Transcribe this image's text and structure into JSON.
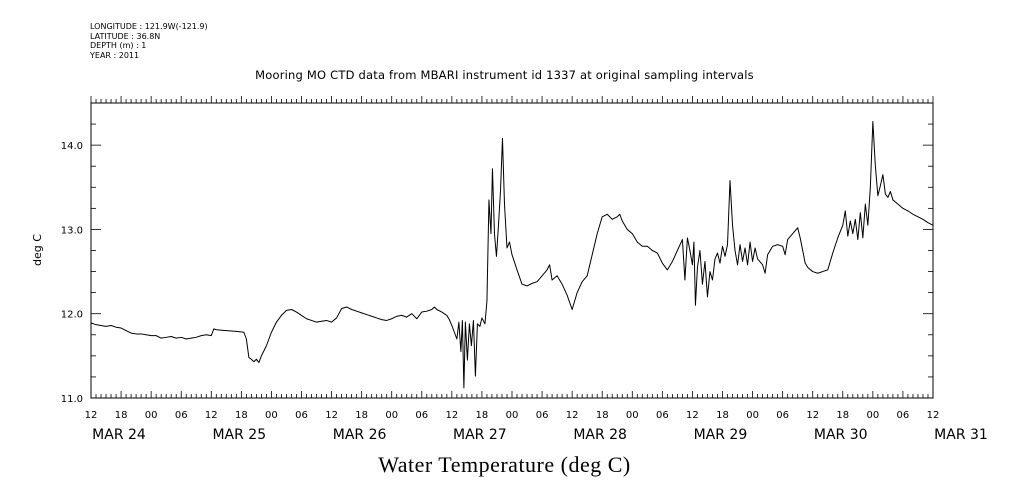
{
  "metadata": {
    "longitude": "LONGITUDE : 121.9W(-121.9)",
    "latitude": "LATITUDE : 36.8N",
    "depth": "DEPTH (m) : 1",
    "year": "YEAR : 2011"
  },
  "chart_data": {
    "type": "line",
    "title": "Mooring MO CTD data from MBARI instrument id 1337 at original sampling intervals",
    "xlabel": "Water Temperature (deg C)",
    "ylabel": "deg C",
    "ylim": [
      11.0,
      14.5
    ],
    "yticks": [
      11.0,
      12.0,
      13.0,
      14.0
    ],
    "ytick_labels": [
      "11.0",
      "12.0",
      "13.0",
      "14.0"
    ],
    "x_unit": "hours since 2011-03-24 12:00",
    "xlim": [
      0,
      168
    ],
    "hour_ticks": [
      {
        "t": 0,
        "label": "12"
      },
      {
        "t": 6,
        "label": "18"
      },
      {
        "t": 12,
        "label": "00"
      },
      {
        "t": 18,
        "label": "06"
      },
      {
        "t": 24,
        "label": "12"
      },
      {
        "t": 30,
        "label": "18"
      },
      {
        "t": 36,
        "label": "00"
      },
      {
        "t": 42,
        "label": "06"
      },
      {
        "t": 48,
        "label": "12"
      },
      {
        "t": 54,
        "label": "18"
      },
      {
        "t": 60,
        "label": "00"
      },
      {
        "t": 66,
        "label": "06"
      },
      {
        "t": 72,
        "label": "12"
      },
      {
        "t": 78,
        "label": "18"
      },
      {
        "t": 84,
        "label": "00"
      },
      {
        "t": 90,
        "label": "06"
      },
      {
        "t": 96,
        "label": "12"
      },
      {
        "t": 102,
        "label": "18"
      },
      {
        "t": 108,
        "label": "00"
      },
      {
        "t": 114,
        "label": "06"
      },
      {
        "t": 120,
        "label": "12"
      },
      {
        "t": 126,
        "label": "18"
      },
      {
        "t": 132,
        "label": "00"
      },
      {
        "t": 138,
        "label": "06"
      },
      {
        "t": 144,
        "label": "12"
      },
      {
        "t": 150,
        "label": "18"
      },
      {
        "t": 156,
        "label": "00"
      },
      {
        "t": 162,
        "label": "06"
      },
      {
        "t": 168,
        "label": "12"
      }
    ],
    "date_labels": [
      {
        "t": 0,
        "label": "MAR 24"
      },
      {
        "t": 24,
        "label": "MAR 25"
      },
      {
        "t": 48,
        "label": "MAR 26"
      },
      {
        "t": 72,
        "label": "MAR 27"
      },
      {
        "t": 96,
        "label": "MAR 28"
      },
      {
        "t": 120,
        "label": "MAR 29"
      },
      {
        "t": 144,
        "label": "MAR 30"
      },
      {
        "t": 168,
        "label": "MAR 31"
      }
    ],
    "series": [
      {
        "values": [
          [
            0,
            11.89
          ],
          [
            1,
            11.87
          ],
          [
            2,
            11.86
          ],
          [
            3,
            11.85
          ],
          [
            4,
            11.86
          ],
          [
            5,
            11.84
          ],
          [
            6,
            11.83
          ],
          [
            7,
            11.8
          ],
          [
            8,
            11.77
          ],
          [
            9,
            11.76
          ],
          [
            10,
            11.76
          ],
          [
            11,
            11.75
          ],
          [
            12,
            11.74
          ],
          [
            13,
            11.74
          ],
          [
            14,
            11.71
          ],
          [
            15,
            11.72
          ],
          [
            16,
            11.73
          ],
          [
            17,
            11.71
          ],
          [
            18,
            11.72
          ],
          [
            19,
            11.7
          ],
          [
            20,
            11.71
          ],
          [
            21,
            11.72
          ],
          [
            22,
            11.74
          ],
          [
            23,
            11.75
          ],
          [
            24,
            11.74
          ],
          [
            24.5,
            11.82
          ],
          [
            25,
            11.81
          ],
          [
            27,
            11.8
          ],
          [
            29,
            11.79
          ],
          [
            30.5,
            11.78
          ],
          [
            31,
            11.7
          ],
          [
            31.5,
            11.48
          ],
          [
            32,
            11.46
          ],
          [
            32.5,
            11.43
          ],
          [
            33,
            11.46
          ],
          [
            33.5,
            11.42
          ],
          [
            34,
            11.5
          ],
          [
            35,
            11.62
          ],
          [
            36,
            11.78
          ],
          [
            37,
            11.9
          ],
          [
            38,
            11.98
          ],
          [
            39,
            12.04
          ],
          [
            40,
            12.05
          ],
          [
            41,
            12.02
          ],
          [
            42,
            11.98
          ],
          [
            43,
            11.94
          ],
          [
            44,
            11.92
          ],
          [
            45,
            11.9
          ],
          [
            46,
            11.91
          ],
          [
            47,
            11.92
          ],
          [
            48,
            11.9
          ],
          [
            49,
            11.95
          ],
          [
            50,
            12.06
          ],
          [
            51,
            12.08
          ],
          [
            52,
            12.05
          ],
          [
            53,
            12.03
          ],
          [
            54,
            12.01
          ],
          [
            55,
            11.99
          ],
          [
            56,
            11.97
          ],
          [
            57,
            11.95
          ],
          [
            58,
            11.93
          ],
          [
            59,
            11.92
          ],
          [
            60,
            11.94
          ],
          [
            61,
            11.97
          ],
          [
            62,
            11.98
          ],
          [
            63,
            11.96
          ],
          [
            64,
            12.0
          ],
          [
            65,
            11.94
          ],
          [
            66,
            12.02
          ],
          [
            67,
            12.03
          ],
          [
            68,
            12.05
          ],
          [
            68.5,
            12.08
          ],
          [
            69,
            12.05
          ],
          [
            70,
            12.02
          ],
          [
            71,
            11.98
          ],
          [
            71.5,
            11.93
          ],
          [
            72,
            11.86
          ],
          [
            72.5,
            11.78
          ],
          [
            73,
            11.7
          ],
          [
            73.4,
            11.9
          ],
          [
            73.8,
            11.55
          ],
          [
            74.1,
            11.92
          ],
          [
            74.4,
            11.12
          ],
          [
            74.7,
            11.9
          ],
          [
            75.1,
            11.45
          ],
          [
            75.5,
            11.88
          ],
          [
            75.9,
            11.62
          ],
          [
            76.3,
            11.92
          ],
          [
            76.7,
            11.26
          ],
          [
            77.1,
            11.88
          ],
          [
            77.6,
            11.85
          ],
          [
            78,
            11.95
          ],
          [
            78.6,
            11.88
          ],
          [
            79,
            12.15
          ],
          [
            79.4,
            13.35
          ],
          [
            79.8,
            12.95
          ],
          [
            80.1,
            13.72
          ],
          [
            80.5,
            12.95
          ],
          [
            80.9,
            12.68
          ],
          [
            81.3,
            13.05
          ],
          [
            81.7,
            13.45
          ],
          [
            82.1,
            14.08
          ],
          [
            82.5,
            13.3
          ],
          [
            83,
            12.78
          ],
          [
            83.5,
            12.85
          ],
          [
            84,
            12.7
          ],
          [
            85,
            12.52
          ],
          [
            86,
            12.35
          ],
          [
            87,
            12.33
          ],
          [
            88,
            12.36
          ],
          [
            89,
            12.38
          ],
          [
            90,
            12.45
          ],
          [
            91,
            12.52
          ],
          [
            91.5,
            12.58
          ],
          [
            92,
            12.4
          ],
          [
            93,
            12.45
          ],
          [
            94,
            12.35
          ],
          [
            95,
            12.22
          ],
          [
            96,
            12.05
          ],
          [
            97,
            12.25
          ],
          [
            98,
            12.38
          ],
          [
            99,
            12.45
          ],
          [
            100,
            12.7
          ],
          [
            101,
            12.95
          ],
          [
            102,
            13.15
          ],
          [
            103,
            13.18
          ],
          [
            104,
            13.12
          ],
          [
            105,
            13.15
          ],
          [
            105.5,
            13.18
          ],
          [
            106,
            13.1
          ],
          [
            107,
            13.0
          ],
          [
            108,
            12.95
          ],
          [
            109,
            12.85
          ],
          [
            110,
            12.8
          ],
          [
            111,
            12.8
          ],
          [
            112,
            12.75
          ],
          [
            113,
            12.72
          ],
          [
            114,
            12.6
          ],
          [
            115,
            12.52
          ],
          [
            116,
            12.62
          ],
          [
            117,
            12.75
          ],
          [
            118,
            12.88
          ],
          [
            118.5,
            12.4
          ],
          [
            119,
            12.9
          ],
          [
            119.5,
            12.75
          ],
          [
            120,
            12.58
          ],
          [
            120.3,
            12.85
          ],
          [
            120.6,
            12.1
          ],
          [
            121,
            12.55
          ],
          [
            121.5,
            12.75
          ],
          [
            122,
            12.35
          ],
          [
            122.5,
            12.62
          ],
          [
            123,
            12.2
          ],
          [
            123.5,
            12.5
          ],
          [
            124,
            12.4
          ],
          [
            124.5,
            12.65
          ],
          [
            125,
            12.72
          ],
          [
            125.5,
            12.6
          ],
          [
            126,
            12.8
          ],
          [
            126.5,
            12.68
          ],
          [
            127,
            12.82
          ],
          [
            127.5,
            13.58
          ],
          [
            128,
            13.05
          ],
          [
            128.5,
            12.75
          ],
          [
            129,
            12.58
          ],
          [
            129.5,
            12.82
          ],
          [
            130,
            12.62
          ],
          [
            130.5,
            12.78
          ],
          [
            131,
            12.58
          ],
          [
            131.5,
            12.85
          ],
          [
            132,
            12.62
          ],
          [
            132.5,
            12.78
          ],
          [
            133,
            12.65
          ],
          [
            134,
            12.58
          ],
          [
            134.5,
            12.48
          ],
          [
            135,
            12.7
          ],
          [
            136,
            12.8
          ],
          [
            137,
            12.82
          ],
          [
            138,
            12.8
          ],
          [
            138.5,
            12.7
          ],
          [
            139,
            12.88
          ],
          [
            140,
            12.95
          ],
          [
            141,
            13.02
          ],
          [
            141.5,
            12.9
          ],
          [
            142,
            12.75
          ],
          [
            142.5,
            12.6
          ],
          [
            143,
            12.55
          ],
          [
            144,
            12.5
          ],
          [
            145,
            12.48
          ],
          [
            146,
            12.5
          ],
          [
            147,
            12.52
          ],
          [
            148,
            12.72
          ],
          [
            149,
            12.9
          ],
          [
            150,
            13.05
          ],
          [
            150.5,
            13.22
          ],
          [
            151,
            12.92
          ],
          [
            151.5,
            13.1
          ],
          [
            152,
            12.95
          ],
          [
            152.5,
            13.12
          ],
          [
            153,
            12.88
          ],
          [
            153.5,
            13.2
          ],
          [
            154,
            12.9
          ],
          [
            154.5,
            13.3
          ],
          [
            155,
            13.05
          ],
          [
            155.5,
            13.5
          ],
          [
            156,
            14.28
          ],
          [
            156.5,
            13.75
          ],
          [
            157,
            13.4
          ],
          [
            157.5,
            13.52
          ],
          [
            158,
            13.65
          ],
          [
            158.5,
            13.42
          ],
          [
            159,
            13.38
          ],
          [
            159.5,
            13.45
          ],
          [
            160,
            13.35
          ],
          [
            161,
            13.3
          ],
          [
            162,
            13.25
          ],
          [
            163,
            13.22
          ],
          [
            164,
            13.18
          ],
          [
            165,
            13.15
          ],
          [
            166,
            13.12
          ],
          [
            167,
            13.08
          ],
          [
            168,
            13.05
          ]
        ]
      }
    ]
  }
}
